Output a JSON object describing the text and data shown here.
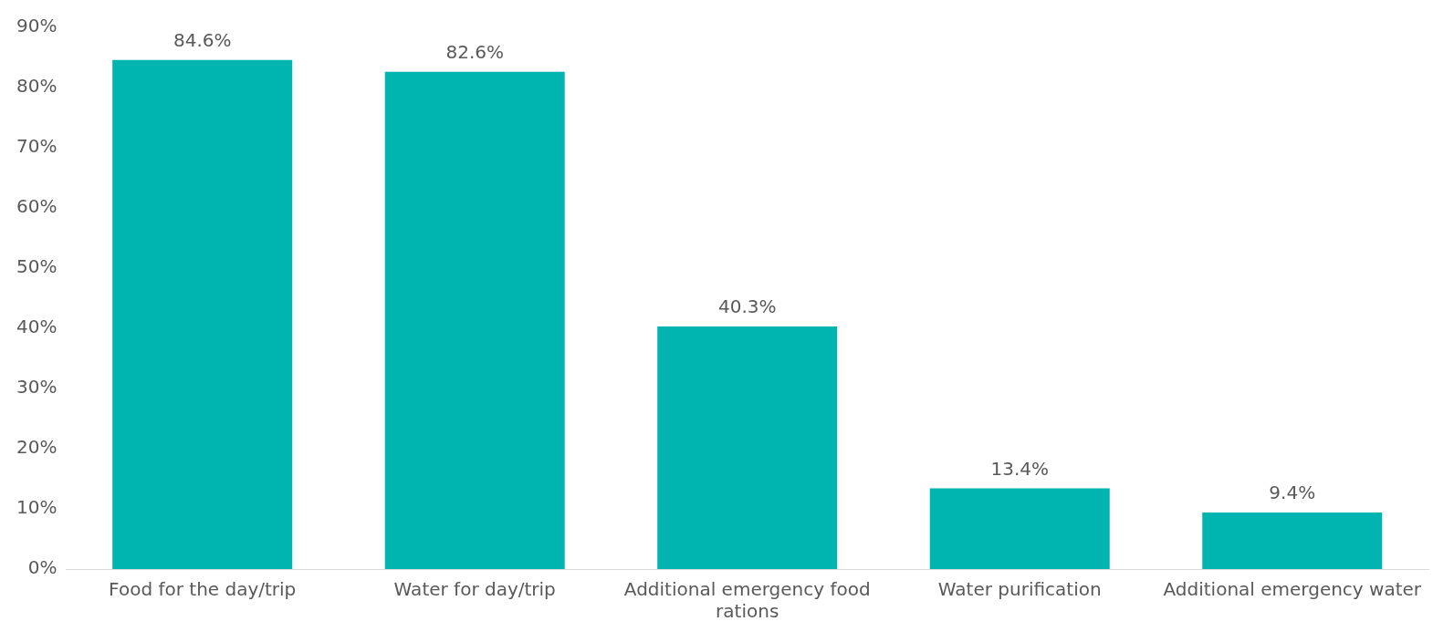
{
  "chart_data": {
    "type": "bar",
    "categories": [
      "Food for the day/trip",
      "Water for day/trip",
      "Additional emergency food rations",
      "Water purification",
      "Additional emergency water"
    ],
    "values": [
      84.6,
      82.6,
      40.3,
      13.4,
      9.4
    ],
    "value_labels": [
      "84.6%",
      "82.6%",
      "40.3%",
      "13.4%",
      "9.4%"
    ],
    "color": "#00b4b0",
    "ylim": [
      0,
      90
    ],
    "yticks": [
      {
        "value": 0,
        "label": "0%"
      },
      {
        "value": 10,
        "label": "10%"
      },
      {
        "value": 20,
        "label": "20%"
      },
      {
        "value": 30,
        "label": "30%"
      },
      {
        "value": 40,
        "label": "40%"
      },
      {
        "value": 50,
        "label": "50%"
      },
      {
        "value": 60,
        "label": "60%"
      },
      {
        "value": 70,
        "label": "70%"
      },
      {
        "value": 80,
        "label": "80%"
      },
      {
        "value": 90,
        "label": "90%"
      }
    ],
    "grid": false,
    "legend": false
  }
}
